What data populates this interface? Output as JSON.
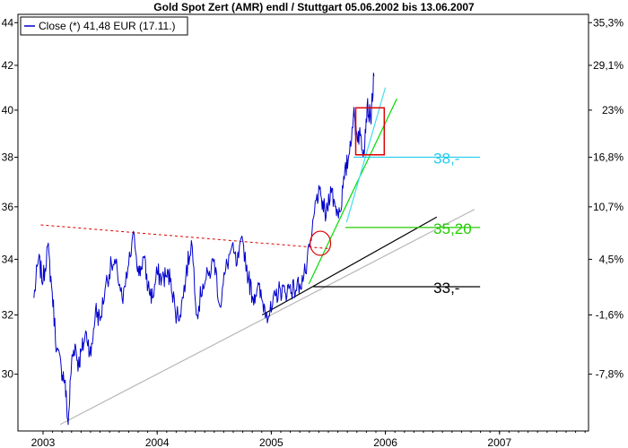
{
  "chart_data": {
    "type": "line",
    "title": "Gold Spot Zert (AMR) endl / Stuttgart 05.06.2002  bis 13.06.2007",
    "legend": {
      "label": "Close (*) 41,48 EUR (17.11.)",
      "placement": "top-left"
    },
    "x_range": [
      2002.78,
      2007.78
    ],
    "x_ticks": [
      "2003",
      "2004",
      "2005",
      "2006",
      "2007"
    ],
    "x_tick_values": [
      2003,
      2004,
      2005,
      2006,
      2007
    ],
    "y_range": [
      28.2,
      44.4
    ],
    "y_scale": "log",
    "y_left_ticks": [
      "30",
      "32",
      "34",
      "36",
      "38",
      "40",
      "42",
      "44"
    ],
    "y_left_tick_values": [
      30,
      32,
      34,
      36,
      38,
      40,
      42,
      44
    ],
    "y_right_ticks": [
      "-7,8%",
      "-1,6%",
      "4,5%",
      "10,7%",
      "16,8%",
      "23%",
      "29,1%",
      "35,3%"
    ],
    "y_right_tick_values": [
      30,
      32,
      34,
      36,
      38,
      40,
      42,
      44
    ],
    "grid": false,
    "series": [
      {
        "name": "Close (*)",
        "color": "#0000cc",
        "x": [
          2002.92,
          2002.96,
          2003.0,
          2003.04,
          2003.08,
          2003.12,
          2003.16,
          2003.19,
          2003.22,
          2003.25,
          2003.28,
          2003.31,
          2003.34,
          2003.38,
          2003.42,
          2003.46,
          2003.5,
          2003.55,
          2003.6,
          2003.65,
          2003.7,
          2003.75,
          2003.8,
          2003.84,
          2003.88,
          2003.92,
          2003.96,
          2004.0,
          2004.04,
          2004.08,
          2004.12,
          2004.16,
          2004.2,
          2004.25,
          2004.3,
          2004.35,
          2004.4,
          2004.45,
          2004.5,
          2004.55,
          2004.6,
          2004.65,
          2004.7,
          2004.75,
          2004.8,
          2004.84,
          2004.88,
          2004.92,
          2004.96,
          2005.0,
          2005.04,
          2005.08,
          2005.12,
          2005.16,
          2005.2,
          2005.25,
          2005.3,
          2005.35,
          2005.4,
          2005.44,
          2005.48,
          2005.52,
          2005.56,
          2005.6,
          2005.64,
          2005.68,
          2005.72,
          2005.75,
          2005.78,
          2005.81,
          2005.84,
          2005.87,
          2005.9
        ],
        "y": [
          32.6,
          34.0,
          33.2,
          34.5,
          32.8,
          30.8,
          30.2,
          29.8,
          28.4,
          30.4,
          31.0,
          30.3,
          30.8,
          31.4,
          30.6,
          32.2,
          31.8,
          33.1,
          33.8,
          33.6,
          32.4,
          33.8,
          34.9,
          33.4,
          34.1,
          33.0,
          32.6,
          33.5,
          33.3,
          33.4,
          33.3,
          32.1,
          32.0,
          33.3,
          34.7,
          32.0,
          33.1,
          33.4,
          34.0,
          32.3,
          33.6,
          34.4,
          33.8,
          34.7,
          33.3,
          32.6,
          33.0,
          32.5,
          32.1,
          32.1,
          32.7,
          32.9,
          32.8,
          33.0,
          32.9,
          33.1,
          33.5,
          34.7,
          36.5,
          36.3,
          35.6,
          36.8,
          36.0,
          35.8,
          37.1,
          38.1,
          39.8,
          39.0,
          38.9,
          38.3,
          40.2,
          39.6,
          41.5
        ]
      }
    ],
    "trend_lines": [
      {
        "from": [
          2003.15,
          28.4
        ],
        "to": [
          2006.78,
          35.9
        ],
        "color": "#b8b8b8"
      },
      {
        "from": [
          2004.92,
          32.0
        ],
        "to": [
          2006.45,
          35.6
        ],
        "color": "#000000"
      },
      {
        "from": [
          2005.33,
          33.1
        ],
        "to": [
          2006.1,
          40.5
        ],
        "color": "#00dd00"
      },
      {
        "from": [
          2005.66,
          35.4
        ],
        "to": [
          2006.0,
          41.0
        ],
        "color": "#44ddee"
      }
    ],
    "resistance_line": {
      "from": [
        2002.98,
        35.3
      ],
      "to": [
        2005.5,
        34.4
      ],
      "color": "#dd0000",
      "style": "dashed"
    },
    "levels": [
      {
        "label": "38,-",
        "value": 38.0,
        "from_x": 2005.72,
        "to_x": 2006.83,
        "color": "#22ccee"
      },
      {
        "label": "35,20",
        "value": 35.2,
        "from_x": 2005.65,
        "to_x": 2006.83,
        "color": "#22cc00"
      },
      {
        "label": "33,-",
        "value": 33.0,
        "from_x": 2005.37,
        "to_x": 2006.83,
        "color": "#000000"
      }
    ],
    "highlight_rect": {
      "x": [
        2005.74,
        2005.99
      ],
      "y": [
        38.1,
        40.1
      ],
      "color": "#dd0000"
    },
    "highlight_ellipse": {
      "center": [
        2005.43,
        34.6
      ],
      "rx_years": 0.09,
      "ry_value": 0.45,
      "color": "#dd0000"
    }
  }
}
